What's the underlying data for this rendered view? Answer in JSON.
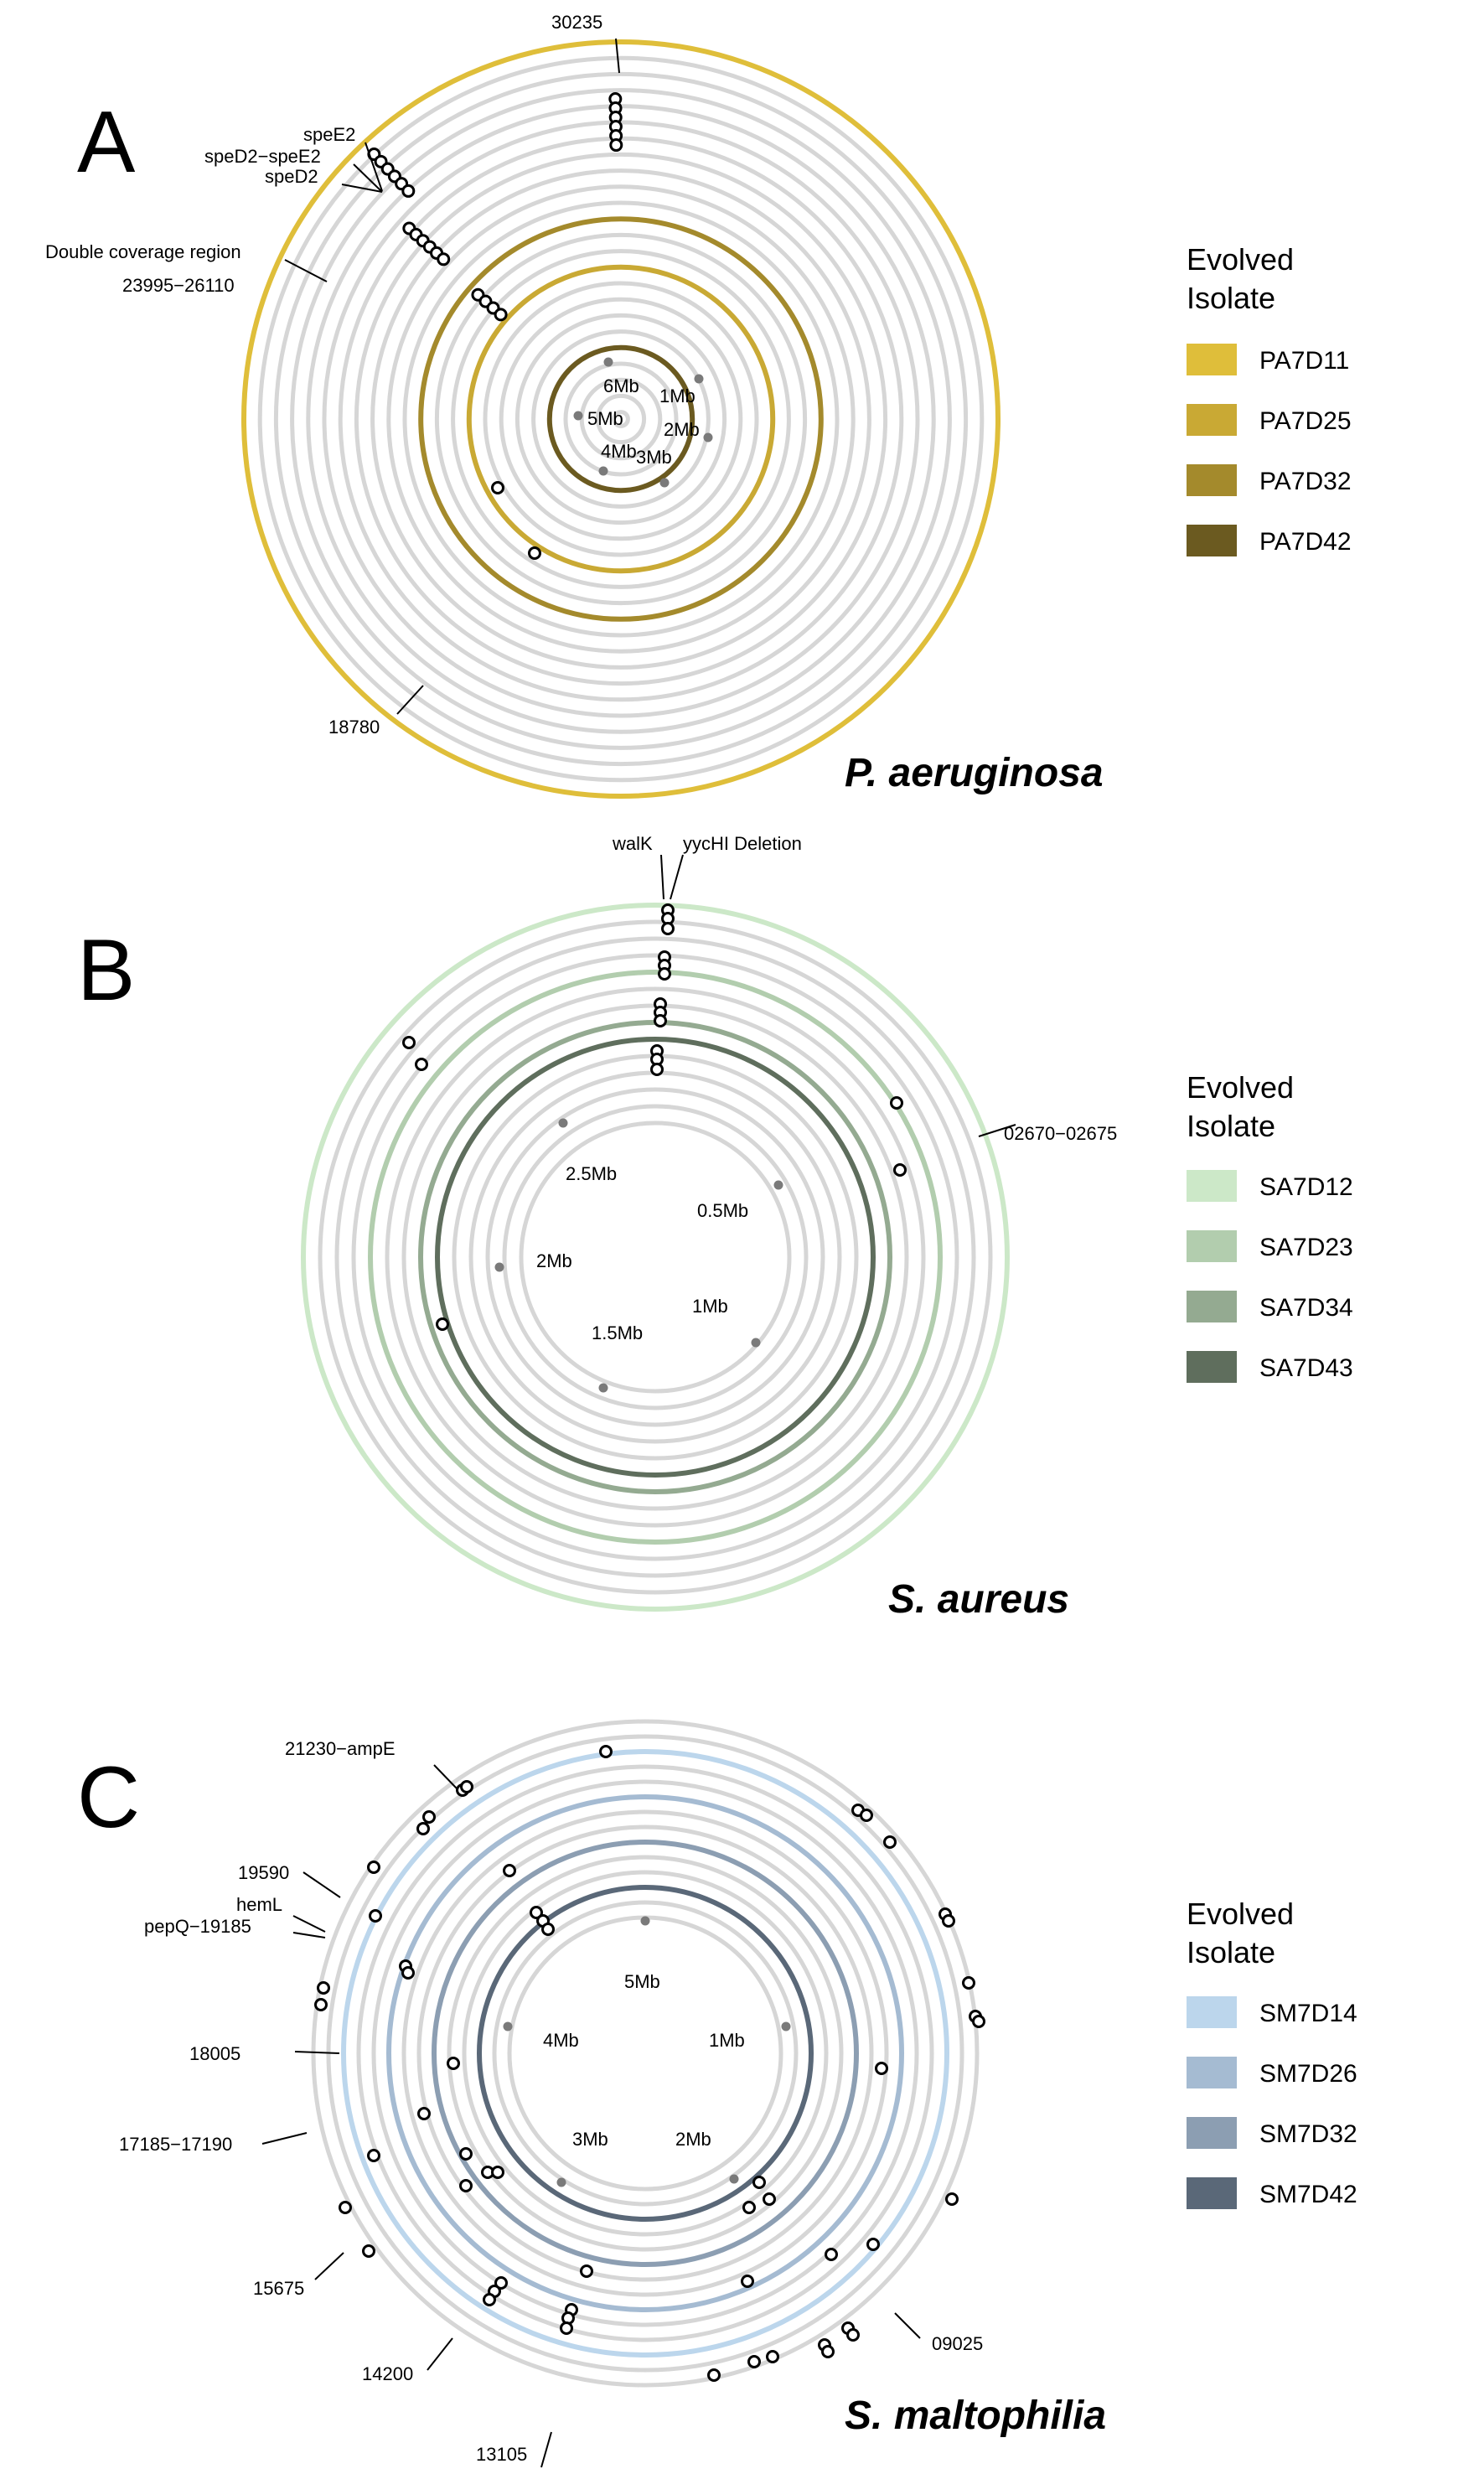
{
  "panels": [
    {
      "letter": "A",
      "species": "P. aeruginosa",
      "legend_title_line1": "Evolved",
      "legend_title_line2": "Isolate",
      "legend": [
        {
          "label": "PA7D11",
          "color": "#dfbe3a"
        },
        {
          "label": "PA7D25",
          "color": "#c9a934"
        },
        {
          "label": "PA7D32",
          "color": "#a48a2c"
        },
        {
          "label": "PA7D42",
          "color": "#6b5a20"
        }
      ],
      "annotations": [
        "30235",
        "speE2",
        "speD2−speE2",
        "speD2",
        "Double coverage region",
        "23995−26110",
        "18780"
      ],
      "mb_labels": [
        "1Mb",
        "2Mb",
        "3Mb",
        "4Mb",
        "5Mb",
        "6Mb"
      ]
    },
    {
      "letter": "B",
      "species": "S. aureus",
      "legend_title_line1": "Evolved",
      "legend_title_line2": "Isolate",
      "legend": [
        {
          "label": "SA7D12",
          "color": "#cce8c8"
        },
        {
          "label": "SA7D23",
          "color": "#b2cdae"
        },
        {
          "label": "SA7D34",
          "color": "#94aa91"
        },
        {
          "label": "SA7D43",
          "color": "#5f6e5d"
        }
      ],
      "annotations": [
        "walK",
        "yycHI Deletion",
        "02670−02675"
      ],
      "mb_labels": [
        "0.5Mb",
        "1Mb",
        "1.5Mb",
        "2Mb",
        "2.5Mb"
      ]
    },
    {
      "letter": "C",
      "species": "S. maltophilia",
      "legend_title_line1": "Evolved",
      "legend_title_line2": "Isolate",
      "legend": [
        {
          "label": "SM7D14",
          "color": "#bcd6ec"
        },
        {
          "label": "SM7D26",
          "color": "#a5bbd2"
        },
        {
          "label": "SM7D32",
          "color": "#8c9eb2"
        },
        {
          "label": "SM7D42",
          "color": "#5a6878"
        }
      ],
      "annotations": [
        "21230−ampE",
        "19590",
        "hemL",
        "pepQ−19185",
        "18005",
        "17185−17190",
        "15675",
        "14200",
        "13105",
        "09025"
      ],
      "mb_labels": [
        "1Mb",
        "2Mb",
        "3Mb",
        "4Mb",
        "5Mb"
      ]
    }
  ]
}
